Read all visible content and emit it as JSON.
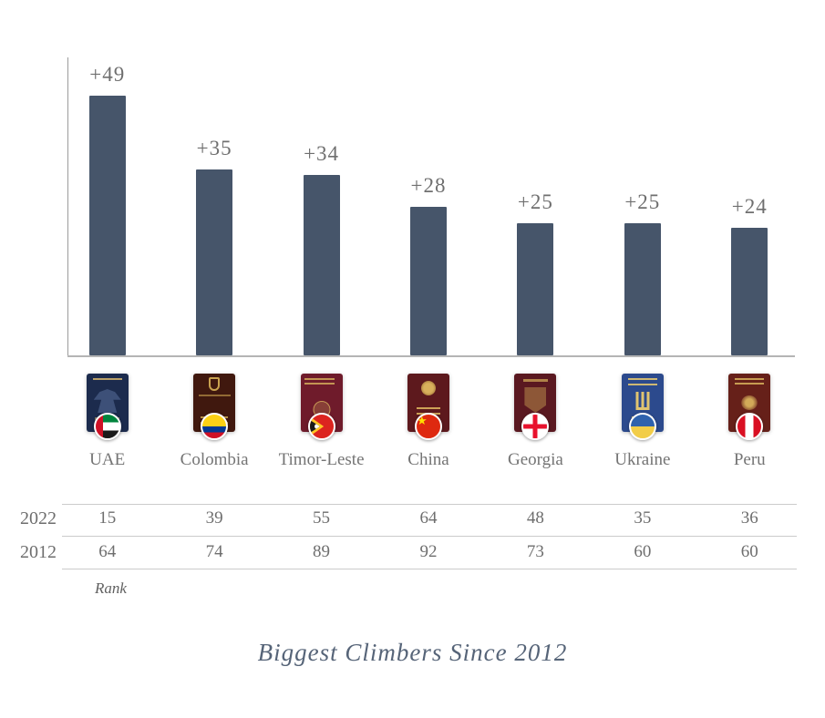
{
  "title": "Biggest Climbers Since 2012",
  "colors": {
    "bar": "#46556a",
    "value_label": "#6f6f6f",
    "country_label": "#747474",
    "table_text": "#6e6e6e",
    "title_text": "#566478",
    "axis_y": "#9c9c9c",
    "axis_x": "#b5b5b5",
    "table_line": "#cbcbcb"
  },
  "chart_data": {
    "type": "bar",
    "title": "Biggest Climbers Since 2012",
    "categories": [
      "UAE",
      "Colombia",
      "Timor-Leste",
      "China",
      "Georgia",
      "Ukraine",
      "Peru"
    ],
    "values": [
      49,
      35,
      34,
      28,
      25,
      25,
      24
    ],
    "bar_labels": [
      "+49",
      "+35",
      "+34",
      "+28",
      "+25",
      "+25",
      "+24"
    ],
    "xlabel": "",
    "ylabel": "",
    "ylim": [
      0,
      52
    ],
    "grid": false,
    "legend": false,
    "annotations": {
      "rank_2022": [
        15,
        39,
        55,
        64,
        48,
        35,
        36
      ],
      "rank_2012": [
        64,
        74,
        89,
        92,
        73,
        60,
        60
      ]
    }
  },
  "table": {
    "row_labels": [
      "2022",
      "2012"
    ],
    "rows": [
      [
        "15",
        "39",
        "55",
        "64",
        "48",
        "35",
        "36"
      ],
      [
        "64",
        "74",
        "89",
        "92",
        "73",
        "60",
        "60"
      ]
    ],
    "footnote": "Rank"
  },
  "passports": [
    {
      "country": "UAE",
      "cover": "#1c2b4d",
      "flag": "uae"
    },
    {
      "country": "Colombia",
      "cover": "#40180e",
      "flag": "colombia"
    },
    {
      "country": "Timor-Leste",
      "cover": "#6f1b2b",
      "flag": "timor-leste"
    },
    {
      "country": "China",
      "cover": "#5d191d",
      "flag": "china"
    },
    {
      "country": "Georgia",
      "cover": "#5a1820",
      "flag": "georgia"
    },
    {
      "country": "Ukraine",
      "cover": "#2c4a8d",
      "flag": "ukraine"
    },
    {
      "country": "Peru",
      "cover": "#662019",
      "flag": "peru"
    }
  ]
}
